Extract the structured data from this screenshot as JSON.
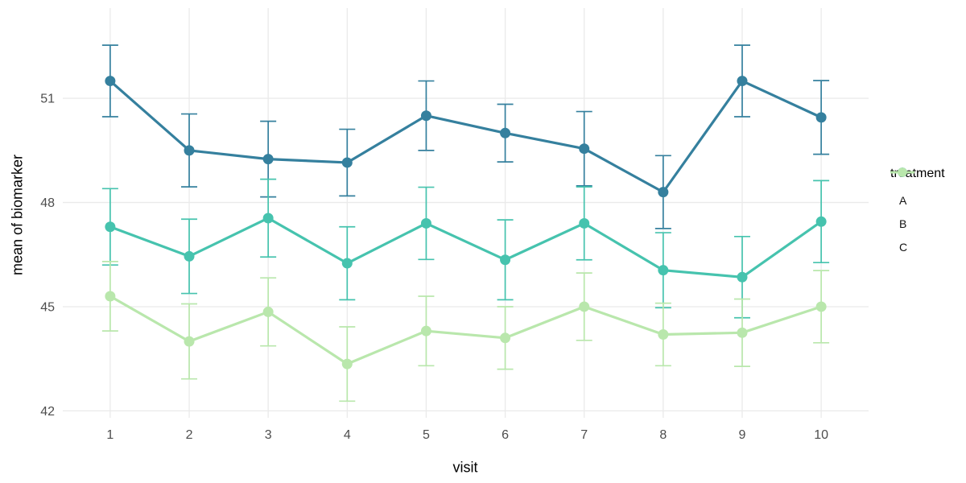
{
  "chart_data": {
    "type": "line",
    "title": "",
    "xlabel": "visit",
    "ylabel": "mean of biomarker",
    "legend_title": "treatment",
    "legend_position": "right",
    "grid": "major-only",
    "error_bars": true,
    "x": [
      1,
      2,
      3,
      4,
      5,
      6,
      7,
      8,
      9,
      10
    ],
    "xticks": [
      "1",
      "2",
      "3",
      "4",
      "5",
      "6",
      "7",
      "8",
      "9",
      "10"
    ],
    "yticks": [
      42,
      45,
      48,
      51
    ],
    "xlim": [
      0.4,
      10.6
    ],
    "ylim": [
      41.8,
      53.6
    ],
    "series": [
      {
        "name": "A",
        "color": "#35809E",
        "values": [
          51.5,
          49.5,
          49.25,
          49.15,
          50.5,
          50.0,
          49.55,
          48.3,
          51.5,
          50.45
        ],
        "errors": [
          1.03,
          1.05,
          1.09,
          0.96,
          1.0,
          0.83,
          1.07,
          1.05,
          1.03,
          1.06
        ]
      },
      {
        "name": "B",
        "color": "#46C3AE",
        "values": [
          47.3,
          46.45,
          47.55,
          46.25,
          47.4,
          46.35,
          47.4,
          46.05,
          45.85,
          47.45
        ],
        "errors": [
          1.1,
          1.07,
          1.12,
          1.05,
          1.04,
          1.15,
          1.05,
          1.08,
          1.17,
          1.18
        ]
      },
      {
        "name": "C",
        "color": "#B9E7AC",
        "values": [
          45.3,
          44.0,
          44.85,
          43.35,
          44.3,
          44.1,
          45.0,
          44.2,
          44.25,
          45.0
        ],
        "errors": [
          1.0,
          1.08,
          0.98,
          1.07,
          1.0,
          0.9,
          0.97,
          0.9,
          0.97,
          1.04
        ]
      }
    ],
    "style": {
      "background": "#FFFFFF",
      "grid_color": "#EAEAEA",
      "tick_label_color": "#4D4D4D",
      "axis_title_color": "#000000"
    }
  }
}
